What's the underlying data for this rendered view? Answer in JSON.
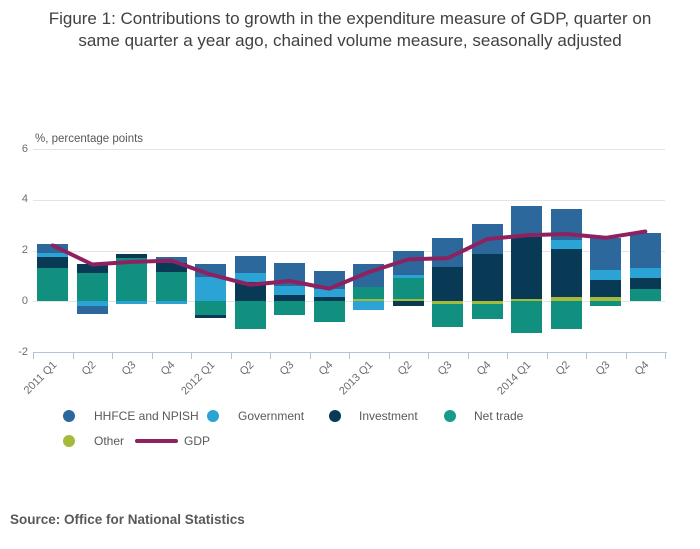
{
  "title": "Figure 1: Contributions to growth in the expenditure measure of GDP, quarter on same quarter a year ago, chained volume measure, seasonally adjusted",
  "source": "Source: Office for National Statistics",
  "colors": {
    "hhfce": "#2d689c",
    "government": "#2ba3d4",
    "investment": "#083a55",
    "net_trade": "#12907f",
    "other": "#a4ba3b",
    "gdp_line": "#8e2160",
    "gridline": "#e4e4e4",
    "axis": "#b4c4d5"
  },
  "legend": {
    "rows": [
      [
        {
          "label": "HHFCE and NPISH",
          "marker": "dot",
          "color": "#2d689c"
        },
        {
          "label": "Government",
          "marker": "dot",
          "color": "#2ba3d4"
        },
        {
          "label": "Investment",
          "marker": "dot",
          "color": "#083a55"
        },
        {
          "label": "Net trade",
          "marker": "dot",
          "color": "#169c87"
        }
      ],
      [
        {
          "label": "Other",
          "marker": "dot",
          "color": "#a4ba3b"
        },
        {
          "label": "GDP",
          "marker": "line",
          "color": "#8e2160"
        }
      ]
    ]
  },
  "chart_data": {
    "type": "bar",
    "subtype": "stacked-bar-with-line",
    "title": "Figure 1: Contributions to growth in the expenditure measure of GDP, quarter on same quarter a year ago, chained volume measure, seasonally adjusted",
    "xlabel": "",
    "ylabel": "%, percentage points",
    "grid": true,
    "legend_position": "bottom",
    "categories": [
      "2011 Q1",
      "Q2",
      "Q3",
      "Q4",
      "2012 Q1",
      "Q2",
      "Q3",
      "Q4",
      "2013 Q1",
      "Q2",
      "Q3",
      "Q4",
      "2014 Q1",
      "Q2",
      "Q3",
      "Q4"
    ],
    "y_axis": {
      "min": -2,
      "max": 6,
      "ticks": [
        6,
        4,
        2,
        0,
        -2
      ],
      "label": "%, percentage points"
    },
    "stack_order_from_zero": [
      "other",
      "net_trade",
      "investment",
      "government",
      "hhfce"
    ],
    "series": [
      {
        "name": "HHFCE and NPISH",
        "key": "hhfce",
        "color": "#2d689c",
        "values": [
          0.35,
          -0.3,
          0.0,
          0.25,
          0.5,
          0.7,
          0.9,
          0.7,
          0.9,
          0.95,
          1.15,
          1.2,
          1.2,
          1.25,
          1.25,
          1.4
        ]
      },
      {
        "name": "Government",
        "key": "government",
        "color": "#2ba3d4",
        "values": [
          0.15,
          -0.2,
          -0.1,
          -0.1,
          0.95,
          0.35,
          0.35,
          0.35,
          -0.35,
          0.15,
          0.0,
          0.0,
          0.0,
          0.35,
          0.4,
          0.4
        ]
      },
      {
        "name": "Investment",
        "key": "investment",
        "color": "#083a55",
        "values": [
          0.45,
          0.35,
          0.15,
          0.35,
          -0.1,
          0.75,
          0.25,
          0.15,
          0.0,
          -0.2,
          1.35,
          1.85,
          2.45,
          1.9,
          0.7,
          0.4
        ]
      },
      {
        "name": "Net trade",
        "key": "net_trade",
        "color": "#12907f",
        "values": [
          1.3,
          1.1,
          1.7,
          1.15,
          -0.55,
          -1.1,
          -0.55,
          -0.8,
          0.45,
          0.8,
          -0.9,
          -0.6,
          -1.25,
          -1.1,
          -0.2,
          0.5
        ]
      },
      {
        "name": "Other",
        "key": "other",
        "color": "#a4ba3b",
        "values": [
          0,
          0,
          0,
          0,
          0,
          0,
          0,
          0,
          0.1,
          0.1,
          -0.1,
          -0.1,
          0.1,
          0.15,
          0.15,
          0
        ]
      }
    ],
    "line_series": {
      "name": "GDP",
      "color": "#8e2160",
      "values": [
        2.2,
        1.45,
        1.55,
        1.6,
        1.05,
        0.65,
        0.8,
        0.5,
        1.15,
        1.65,
        1.7,
        2.45,
        2.6,
        2.65,
        2.5,
        2.75
      ]
    }
  }
}
